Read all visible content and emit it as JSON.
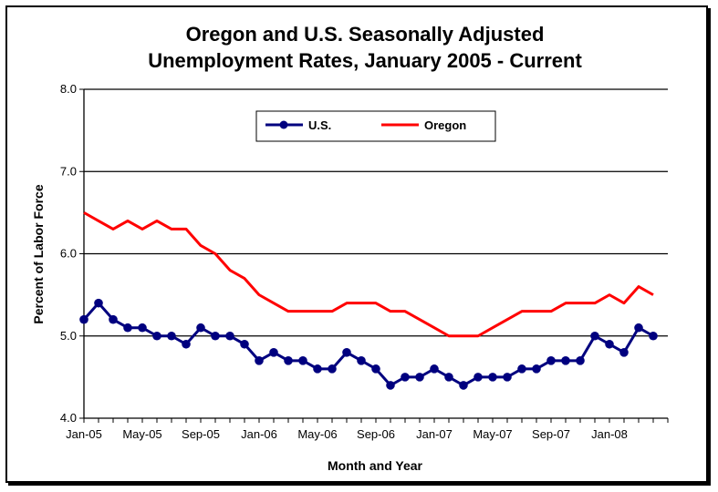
{
  "chart_data": {
    "type": "line",
    "title_line1": "Oregon and U.S. Seasonally Adjusted",
    "title_line2": "Unemployment Rates, January 2005 - Current",
    "xlabel": "Month and Year",
    "ylabel": "Percent of Labor Force",
    "ylim": [
      4.0,
      8.0
    ],
    "yticks": [
      "4.0",
      "5.0",
      "6.0",
      "7.0",
      "8.0"
    ],
    "grid": true,
    "legend_position": "top-center",
    "x_tick_labels": [
      "Jan-05",
      "May-05",
      "Sep-05",
      "Jan-06",
      "May-06",
      "Sep-06",
      "Jan-07",
      "May-07",
      "Sep-07",
      "Jan-08"
    ],
    "x_tick_every": 4,
    "x": [
      "Jan-05",
      "Feb-05",
      "Mar-05",
      "Apr-05",
      "May-05",
      "Jun-05",
      "Jul-05",
      "Aug-05",
      "Sep-05",
      "Oct-05",
      "Nov-05",
      "Dec-05",
      "Jan-06",
      "Feb-06",
      "Mar-06",
      "Apr-06",
      "May-06",
      "Jun-06",
      "Jul-06",
      "Aug-06",
      "Sep-06",
      "Oct-06",
      "Nov-06",
      "Dec-06",
      "Jan-07",
      "Feb-07",
      "Mar-07",
      "Apr-07",
      "May-07",
      "Jun-07",
      "Jul-07",
      "Aug-07",
      "Sep-07",
      "Oct-07",
      "Nov-07",
      "Dec-07",
      "Jan-08",
      "Feb-08",
      "Mar-08",
      "Apr-08"
    ],
    "series": [
      {
        "name": "U.S.",
        "color": "#00007f",
        "marker": "circle",
        "values": [
          5.2,
          5.4,
          5.2,
          5.1,
          5.1,
          5.0,
          5.0,
          4.9,
          5.1,
          5.0,
          5.0,
          4.9,
          4.7,
          4.8,
          4.7,
          4.7,
          4.6,
          4.6,
          4.8,
          4.7,
          4.6,
          4.4,
          4.5,
          4.5,
          4.6,
          4.5,
          4.4,
          4.5,
          4.5,
          4.5,
          4.6,
          4.6,
          4.7,
          4.7,
          4.7,
          5.0,
          4.9,
          4.8,
          5.1,
          5.0
        ]
      },
      {
        "name": "Oregon",
        "color": "#ff0000",
        "marker": "none",
        "values": [
          6.5,
          6.4,
          6.3,
          6.4,
          6.3,
          6.4,
          6.3,
          6.3,
          6.1,
          6.0,
          5.8,
          5.7,
          5.5,
          5.4,
          5.3,
          5.3,
          5.3,
          5.3,
          5.4,
          5.4,
          5.4,
          5.3,
          5.3,
          5.2,
          5.1,
          5.0,
          5.0,
          5.0,
          5.1,
          5.2,
          5.3,
          5.3,
          5.3,
          5.4,
          5.4,
          5.4,
          5.5,
          5.4,
          5.6,
          5.5
        ]
      }
    ]
  }
}
